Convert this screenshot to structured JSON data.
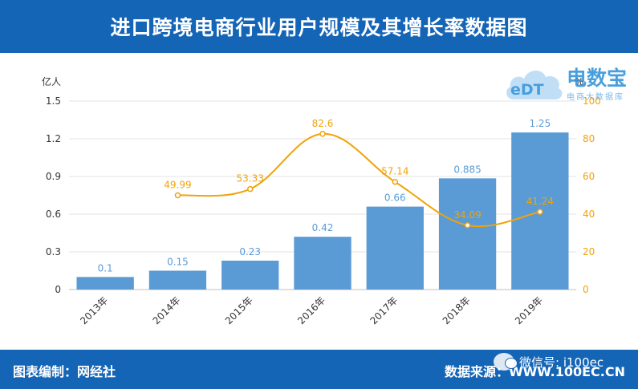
{
  "header": {
    "title": "进口跨境电商行业用户规模及其增长率数据图"
  },
  "logo": {
    "mark": "eDT",
    "text": "电数宝",
    "sub": "电商大数据库"
  },
  "footer": {
    "left": "图表编制：网经社",
    "right": "数据来源：WWW.100EC.CN",
    "watermark": "微信号: i100ec"
  },
  "colors": {
    "header_bg": "#1565b7",
    "bar": "#5b9bd5",
    "line": "#f0a30a",
    "bar_label": "#5b9bd5",
    "line_label": "#f0a30a"
  },
  "chart_data": {
    "type": "bar",
    "categories": [
      "2013年",
      "2014年",
      "2015年",
      "2016年",
      "2017年",
      "2018年",
      "2019年"
    ],
    "series": [
      {
        "type": "bar",
        "axis": "left",
        "values": [
          0.1,
          0.15,
          0.23,
          0.42,
          0.66,
          0.885,
          1.25
        ]
      },
      {
        "type": "line",
        "axis": "right",
        "values": [
          null,
          49.99,
          53.33,
          82.6,
          57.14,
          34.09,
          41.24
        ]
      }
    ],
    "ylabel_left": "亿人",
    "ylabel_right": "%",
    "ylim_left": [
      0,
      1.5
    ],
    "ylim_right": [
      0,
      100
    ],
    "yticks_left": [
      "0",
      "0.3",
      "0.6",
      "0.9",
      "1.2",
      "1.5"
    ],
    "yticks_right": [
      "0",
      "20",
      "40",
      "60",
      "80",
      "100"
    ],
    "grid": true,
    "legend": "none"
  }
}
